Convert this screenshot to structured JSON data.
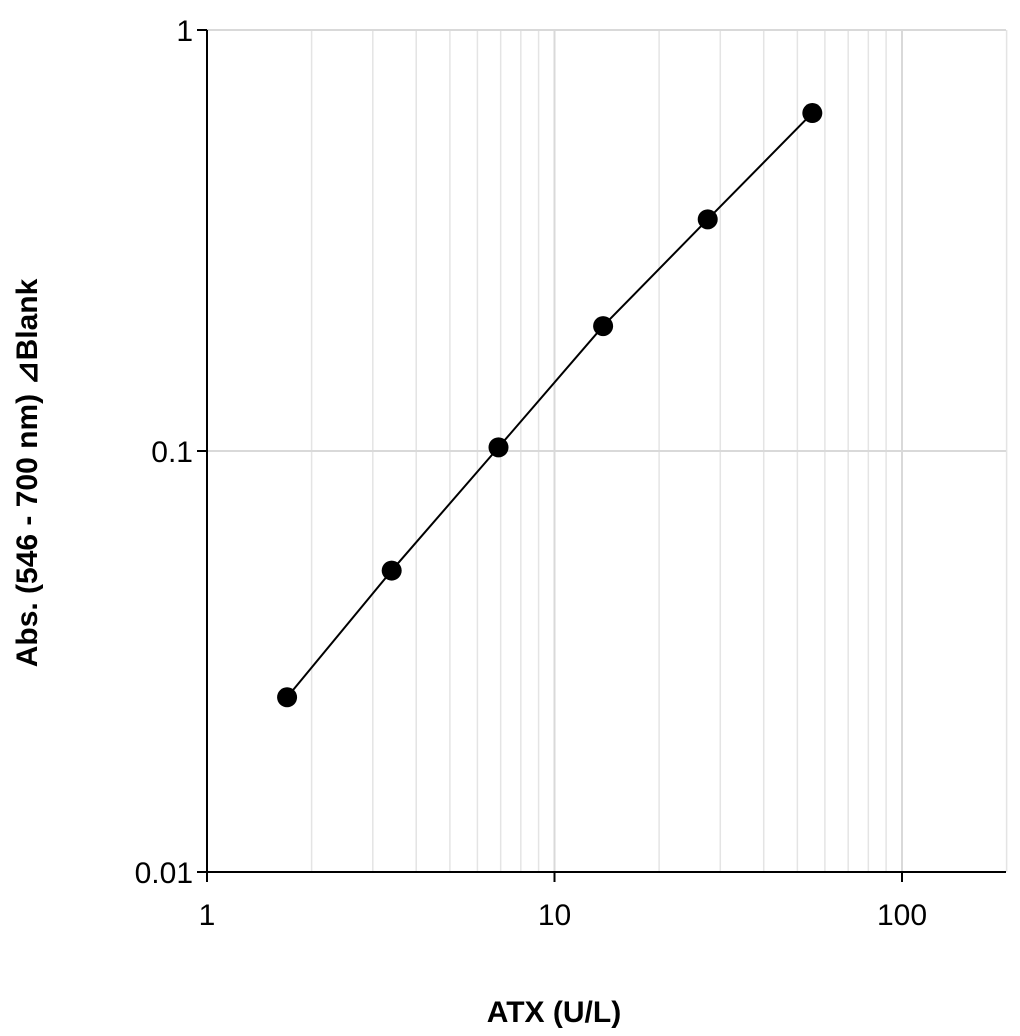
{
  "chart_data": {
    "type": "scatter",
    "xlabel": "ATX (U/L)",
    "ylabel": "Abs. (546 - 700 nm) ⊿Blank",
    "x_scale": "log",
    "y_scale": "log",
    "xlim": [
      1,
      200
    ],
    "ylim": [
      0.01,
      1
    ],
    "x_ticks": [
      "1",
      "10",
      "100"
    ],
    "y_ticks": [
      "0.01",
      "0.1",
      "1"
    ],
    "grid": true,
    "legend": "none",
    "series": [
      {
        "x": [
          1.7,
          3.4,
          6.9,
          13.8,
          27.6,
          55.2
        ],
        "y": [
          0.026,
          0.052,
          0.102,
          0.198,
          0.355,
          0.635
        ],
        "line": true,
        "marker": "circle"
      }
    ],
    "colors": {
      "series": "#000000",
      "grid": "#d9d9d9",
      "axis": "#000000"
    }
  }
}
